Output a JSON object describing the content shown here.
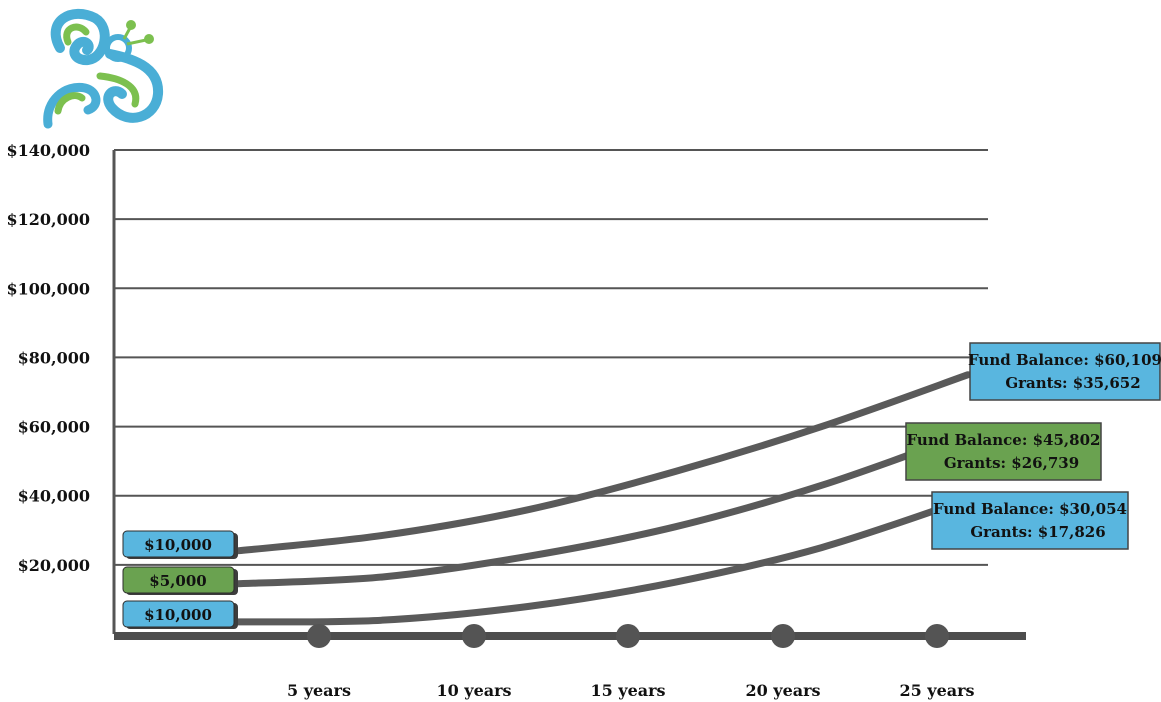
{
  "logo": {
    "name": "butterfly-logo",
    "colors": [
      "#4aaed6",
      "#7cc04f"
    ]
  },
  "chart_data": {
    "type": "line",
    "ylim": [
      0,
      140000
    ],
    "y_ticks": [
      {
        "value": 20000,
        "label": "$20,000"
      },
      {
        "value": 40000,
        "label": "$40,000"
      },
      {
        "value": 60000,
        "label": "$60,000"
      },
      {
        "value": 80000,
        "label": "$80,000"
      },
      {
        "value": 100000,
        "label": "$100,000"
      },
      {
        "value": 120000,
        "label": "$120,000"
      },
      {
        "value": 140000,
        "label": "$140,000"
      }
    ],
    "x": [
      0,
      5,
      10,
      15,
      20,
      25
    ],
    "x_tick_labels": [
      "5 years",
      "10 years",
      "15 years",
      "20 years",
      "25 years"
    ],
    "grid": true,
    "series": [
      {
        "color": "#59b6df",
        "start_label": "$10,000",
        "values": [
          24000,
          28500,
          36000,
          47000,
          60000,
          75000
        ],
        "end_labels": [
          "Fund Balance: $60,109",
          "Grants: $35,652"
        ]
      },
      {
        "color": "#6aa250",
        "start_label": "$5,000",
        "values": [
          14500,
          16500,
          22500,
          31000,
          43000,
          58000
        ],
        "end_labels": [
          "Fund Balance: $45,802",
          "Grants: $26,739"
        ]
      },
      {
        "color": "#59b6df",
        "start_label": "$10,000",
        "values": [
          3500,
          4000,
          8000,
          15000,
          25000,
          39000
        ],
        "end_labels": [
          "Fund Balance: $30,054",
          "Grants: $17,826"
        ]
      }
    ]
  }
}
